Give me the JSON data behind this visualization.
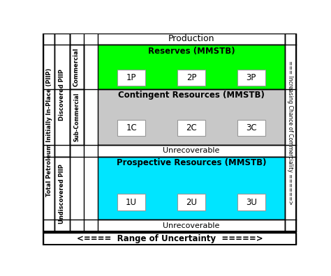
{
  "title_production": "Production",
  "title_range": "<====  Range of Uncertainty  =====>",
  "title_right": "=== Increasing Chance of Commerciality ======>",
  "left_label_total": "Total Petroleum Initially In-Place (PIIP)",
  "left_label_discovered": "Discovered PIIP",
  "left_label_undiscovered": "Undiscovered PIIP",
  "left_label_commercial": "Commercial",
  "left_label_subcommercial": "Sub-Commercial",
  "reserves_label": "Reserves (MMSTB)",
  "contingent_label": "Contingent Resources (MMSTB)",
  "prospective_label": "Prospective Resources (MMSTB)",
  "unrecoverable": "Unrecoverable",
  "reserves_color": "#00ff00",
  "contingent_color": "#c8c8c8",
  "prospective_color": "#00e5ff",
  "white": "#ffffff",
  "black": "#000000",
  "box_edge": "#999999",
  "reserves_boxes": [
    "1P",
    "2P",
    "3P"
  ],
  "contingent_boxes": [
    "1C",
    "2C",
    "3C"
  ],
  "prospective_boxes": [
    "1U",
    "2U",
    "3U"
  ]
}
